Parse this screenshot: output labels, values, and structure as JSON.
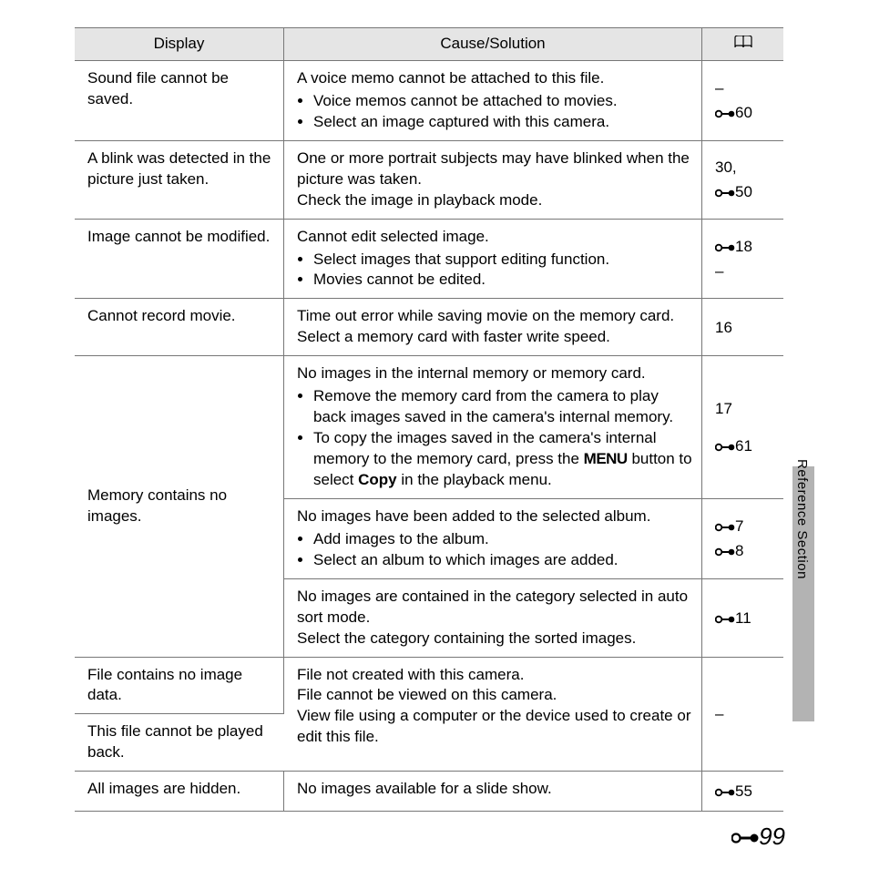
{
  "header": {
    "display": "Display",
    "cause": "Cause/Solution"
  },
  "rows": [
    {
      "display": "Sound file cannot be saved.",
      "intro": "A voice memo cannot be attached to this file.",
      "bullets": [
        "Voice memos cannot be attached to movies.",
        "Select an image captured with this camera."
      ],
      "refs": [
        {
          "t": "–"
        },
        {
          "i": true,
          "t": "60"
        }
      ]
    },
    {
      "display": "A blink was detected in the picture just taken.",
      "lines": [
        "One or more portrait subjects may have blinked when the picture was taken.",
        "Check the image in playback mode."
      ],
      "refs": [
        {
          "t": "30,"
        },
        {
          "i": true,
          "t": "50"
        }
      ]
    },
    {
      "display": "Image cannot be modified.",
      "intro": "Cannot edit selected image.",
      "bullets": [
        "Select images that support editing function.",
        "Movies cannot be edited."
      ],
      "refs": [
        {
          "i": true,
          "t": "18"
        },
        {
          "t": "–"
        }
      ]
    },
    {
      "display": "Cannot record movie.",
      "lines": [
        "Time out error while saving movie on the memory card.",
        "Select a memory card with faster write speed."
      ],
      "refs": [
        {
          "t": "16"
        }
      ]
    },
    {
      "display": "Memory contains no images.",
      "rowspan": 3,
      "intro": "No images in the internal memory or memory card.",
      "bullets": [
        "Remove the memory card from the camera to play back images saved in the camera's internal memory.",
        {
          "pre": "To copy the images saved in the camera's internal memory to the memory card, press the ",
          "menu": "MENU",
          "mid": " button to select ",
          "bold": "Copy",
          "post": " in the playback menu."
        }
      ],
      "refs": [
        {
          "t": "17"
        },
        {
          "sp": true
        },
        {
          "i": true,
          "t": "61"
        }
      ]
    },
    {
      "sub": true,
      "intro": "No images have been added to the selected album.",
      "bullets": [
        "Add images to the album.",
        "Select an album to which images are added."
      ],
      "refs": [
        {
          "i": true,
          "t": "7"
        },
        {
          "i": true,
          "t": "8"
        }
      ]
    },
    {
      "sub": true,
      "lines": [
        "No images are contained in the category selected in auto sort mode.",
        "Select the category containing the sorted images."
      ],
      "refs": [
        {
          "i": true,
          "t": "11"
        }
      ]
    },
    {
      "display": "File contains no image data.",
      "cause_rowspan": 2,
      "lines": [
        "File not created with this camera.",
        "File cannot be viewed on this camera.",
        "View file using a computer or the device used to create or edit this file."
      ],
      "refs": [
        {
          "t": "–"
        }
      ]
    },
    {
      "display": "This file cannot be played back.",
      "display_only": true
    },
    {
      "display": "All images are hidden.",
      "lines": [
        "No images available for a slide show."
      ],
      "refs": [
        {
          "i": true,
          "t": "55"
        }
      ]
    }
  ],
  "side_label": "Reference Section",
  "page_number": "99"
}
